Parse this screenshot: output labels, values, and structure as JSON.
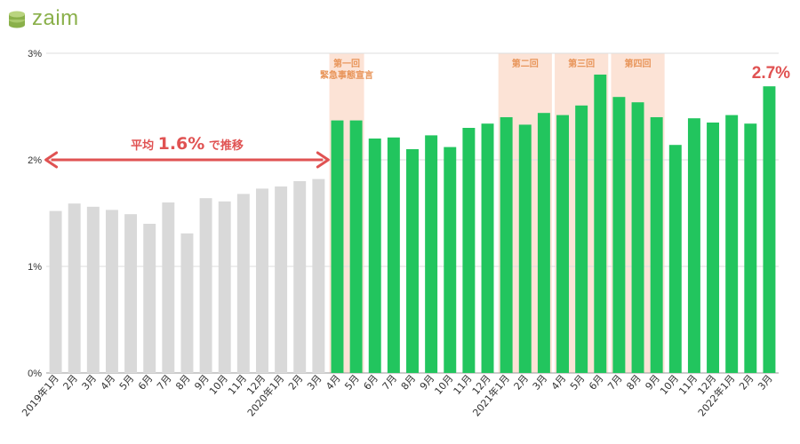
{
  "brand": {
    "name": "zaim",
    "color": "#8ab04a"
  },
  "colors": {
    "before": "#d9d9d9",
    "after": "#22c55e",
    "band": "#fce3d6",
    "band_label": "#e8955a",
    "accent": "#e05252",
    "grid": "#dddddd"
  },
  "chart_data": {
    "type": "bar",
    "title": "",
    "xlabel": "",
    "ylabel": "",
    "ylim": [
      0,
      3
    ],
    "yunit": "%",
    "ytick_labels": [
      "0%",
      "1%",
      "2%",
      "3%"
    ],
    "grid": true,
    "categories": [
      "2019年1月",
      "2月",
      "3月",
      "4月",
      "5月",
      "6月",
      "7月",
      "8月",
      "9月",
      "10月",
      "11月",
      "12月",
      "2020年1月",
      "2月",
      "3月",
      "4月",
      "5月",
      "6月",
      "7月",
      "8月",
      "9月",
      "10月",
      "11月",
      "12月",
      "2021年1月",
      "2月",
      "3月",
      "4月",
      "5月",
      "6月",
      "7月",
      "8月",
      "9月",
      "10月",
      "11月",
      "12月",
      "2022年1月",
      "2月",
      "3月"
    ],
    "values": [
      1.52,
      1.59,
      1.56,
      1.53,
      1.49,
      1.4,
      1.6,
      1.31,
      1.64,
      1.61,
      1.68,
      1.73,
      1.75,
      1.8,
      1.82,
      2.37,
      2.37,
      2.2,
      2.21,
      2.1,
      2.23,
      2.12,
      2.3,
      2.34,
      2.4,
      2.33,
      2.44,
      2.42,
      2.51,
      2.8,
      2.59,
      2.54,
      2.4,
      2.14,
      2.39,
      2.35,
      2.42,
      2.34,
      2.69
    ],
    "highlight_from_index": 15,
    "emergency_periods": [
      {
        "label_lines": [
          "第一回",
          "緊急事態宣言"
        ],
        "months": [
          "2020年4月",
          "2020年5月"
        ],
        "start_index": 15,
        "end_index": 16
      },
      {
        "label_lines": [
          "第二回"
        ],
        "months": [
          "2021年1月",
          "2021年3月"
        ],
        "start_index": 24,
        "end_index": 26
      },
      {
        "label_lines": [
          "第三回"
        ],
        "months": [
          "2021年4月",
          "2021年6月"
        ],
        "start_index": 27,
        "end_index": 29
      },
      {
        "label_lines": [
          "第四回"
        ],
        "months": [
          "2021年7月",
          "2021年9月"
        ],
        "start_index": 30,
        "end_index": 32
      }
    ],
    "average_annotation": {
      "prefix": "平均",
      "value": "1.6%",
      "suffix": "で推移",
      "start_index": 0,
      "end_index": 14
    },
    "last_value_label": "2.7%"
  }
}
